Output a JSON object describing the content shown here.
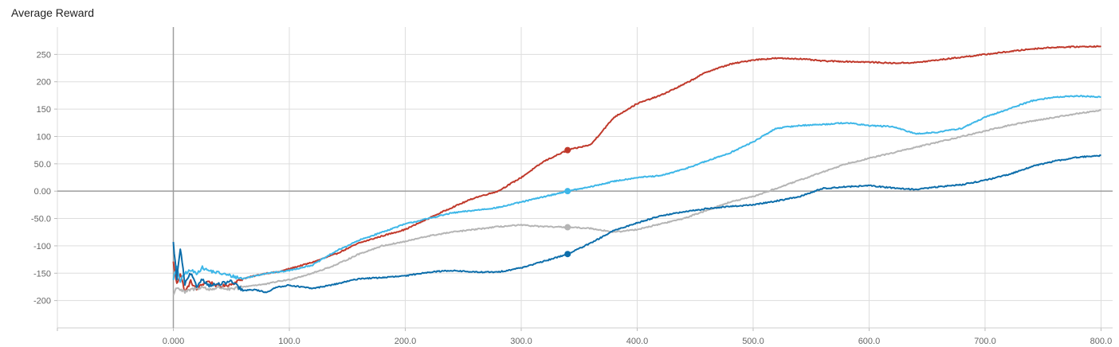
{
  "chart_data": {
    "type": "line",
    "title": "Average Reward",
    "xlabel": "",
    "ylabel": "",
    "xlim": [
      -100,
      810
    ],
    "ylim": [
      -250,
      300
    ],
    "x_ticks": [
      0,
      100,
      200,
      300,
      400,
      500,
      600,
      700,
      800
    ],
    "x_tick_labels": [
      "0.000",
      "100.0",
      "200.0",
      "300.0",
      "400.0",
      "500.0",
      "600.0",
      "700.0",
      "800.0"
    ],
    "y_ticks": [
      -200,
      -150,
      -100,
      -50,
      0,
      50,
      100,
      150,
      200,
      250
    ],
    "y_tick_labels": [
      "-200",
      "-150",
      "-100",
      "-50.0",
      "0.00",
      "50.0",
      "100",
      "150",
      "200",
      "250"
    ],
    "grid": true,
    "hover_x": 340,
    "series": [
      {
        "color": "#c0392b",
        "x": [
          0,
          3,
          6,
          10,
          15,
          20,
          25,
          30,
          40,
          50,
          60,
          70,
          80,
          90,
          100,
          120,
          140,
          160,
          180,
          200,
          220,
          240,
          260,
          280,
          300,
          320,
          340,
          360,
          380,
          400,
          420,
          440,
          460,
          480,
          500,
          520,
          540,
          560,
          580,
          600,
          620,
          640,
          660,
          680,
          700,
          720,
          740,
          760,
          780,
          800
        ],
        "y": [
          -130,
          -170,
          -150,
          -185,
          -165,
          -180,
          -170,
          -165,
          -175,
          -170,
          -160,
          -155,
          -150,
          -148,
          -142,
          -130,
          -115,
          -95,
          -82,
          -70,
          -50,
          -30,
          -12,
          0,
          25,
          55,
          75,
          85,
          135,
          160,
          175,
          195,
          218,
          232,
          240,
          243,
          242,
          238,
          237,
          236,
          234,
          235,
          240,
          245,
          250,
          255,
          260,
          263,
          264,
          265
        ]
      },
      {
        "color": "#3eb7e8",
        "x": [
          0,
          3,
          6,
          10,
          15,
          20,
          25,
          30,
          40,
          50,
          60,
          70,
          80,
          90,
          100,
          120,
          140,
          160,
          180,
          200,
          220,
          240,
          260,
          280,
          300,
          320,
          340,
          360,
          380,
          400,
          420,
          440,
          460,
          480,
          500,
          520,
          540,
          560,
          580,
          600,
          620,
          640,
          660,
          680,
          700,
          720,
          740,
          760,
          780,
          800
        ],
        "y": [
          -160,
          -140,
          -165,
          -150,
          -145,
          -150,
          -140,
          -145,
          -150,
          -155,
          -160,
          -155,
          -150,
          -148,
          -145,
          -135,
          -110,
          -90,
          -75,
          -60,
          -50,
          -40,
          -35,
          -30,
          -20,
          -10,
          0,
          8,
          18,
          25,
          28,
          40,
          55,
          70,
          90,
          115,
          120,
          122,
          125,
          120,
          118,
          105,
          108,
          115,
          135,
          150,
          165,
          172,
          174,
          172
        ]
      },
      {
        "color": "#b5b5b5",
        "x": [
          0,
          3,
          6,
          10,
          15,
          20,
          25,
          30,
          40,
          50,
          60,
          70,
          80,
          90,
          100,
          120,
          140,
          160,
          180,
          200,
          220,
          240,
          260,
          280,
          300,
          320,
          340,
          360,
          380,
          400,
          420,
          440,
          460,
          480,
          500,
          520,
          540,
          560,
          580,
          600,
          620,
          640,
          660,
          680,
          700,
          720,
          740,
          760,
          780,
          800
        ],
        "y": [
          -190,
          -175,
          -180,
          -185,
          -180,
          -178,
          -175,
          -180,
          -176,
          -180,
          -175,
          -172,
          -170,
          -165,
          -162,
          -150,
          -135,
          -115,
          -100,
          -92,
          -82,
          -75,
          -70,
          -65,
          -62,
          -65,
          -66,
          -68,
          -75,
          -70,
          -60,
          -50,
          -35,
          -20,
          -10,
          5,
          20,
          35,
          50,
          60,
          70,
          80,
          90,
          100,
          110,
          120,
          128,
          135,
          142,
          148
        ]
      },
      {
        "color": "#0d6eab",
        "x": [
          0,
          3,
          6,
          10,
          15,
          20,
          25,
          30,
          40,
          50,
          60,
          70,
          80,
          90,
          100,
          120,
          140,
          160,
          180,
          200,
          220,
          240,
          260,
          280,
          300,
          320,
          340,
          360,
          380,
          400,
          420,
          440,
          460,
          480,
          500,
          520,
          540,
          560,
          580,
          600,
          620,
          640,
          660,
          680,
          700,
          720,
          740,
          760,
          780,
          800
        ],
        "y": [
          -95,
          -160,
          -105,
          -170,
          -150,
          -175,
          -160,
          -172,
          -170,
          -165,
          -182,
          -180,
          -185,
          -175,
          -172,
          -178,
          -170,
          -160,
          -158,
          -155,
          -148,
          -145,
          -148,
          -148,
          -140,
          -128,
          -115,
          -95,
          -72,
          -58,
          -45,
          -38,
          -32,
          -28,
          -25,
          -18,
          -10,
          5,
          8,
          10,
          6,
          3,
          8,
          12,
          20,
          30,
          45,
          55,
          62,
          65
        ]
      }
    ]
  }
}
